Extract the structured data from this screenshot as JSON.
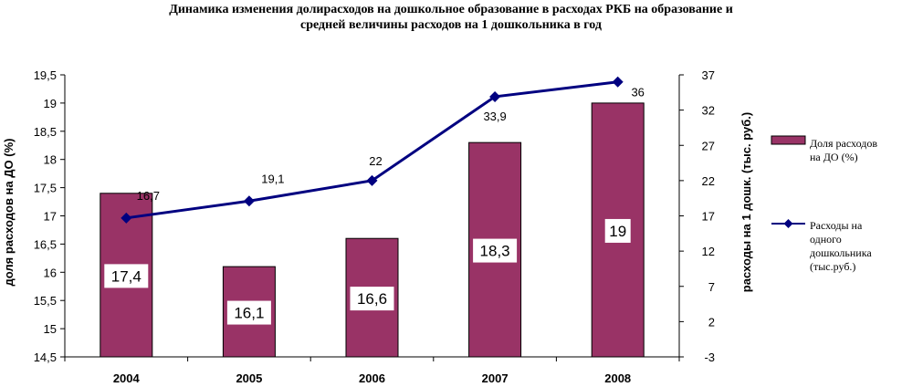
{
  "chart_data": {
    "type": "bar+line",
    "title_lines": [
      "Динамика изменения долирасходов на дошкольное образование в расходах РКБ на образование и",
      "средней величины расходов на 1 дошкольника в год"
    ],
    "categories": [
      "2004",
      "2005",
      "2006",
      "2007",
      "2008"
    ],
    "series": [
      {
        "name": "Доля расходов на ДО (%)",
        "legend_lines": [
          "Доля расходов",
          "на ДО (%)"
        ],
        "type": "bar",
        "axis": "left",
        "values": [
          17.4,
          16.1,
          16.6,
          18.3,
          19
        ],
        "labels": [
          "17,4",
          "16,1",
          "16,6",
          "18,3",
          "19"
        ],
        "color": "#993366"
      },
      {
        "name": "Расходы на одного дошкольника (тыс.руб.)",
        "legend_lines": [
          "Расходы на",
          "одного",
          "дошкольника",
          "(тыс.руб.)"
        ],
        "type": "line",
        "axis": "right",
        "values": [
          16.7,
          19.1,
          22,
          33.9,
          36
        ],
        "labels": [
          "16,7",
          "19,1",
          "22",
          "33,9",
          "36"
        ],
        "color": "#000080"
      }
    ],
    "y_left": {
      "label": "доля расходов на ДО (%)",
      "range": [
        14.5,
        19.5
      ],
      "ticks": [
        "14,5",
        "15",
        "15,5",
        "16",
        "16,5",
        "17",
        "17,5",
        "18",
        "18,5",
        "19",
        "19,5"
      ]
    },
    "y_right": {
      "label": "расходы на 1 дошк. (тыс. руб.)",
      "range": [
        -3,
        37
      ],
      "ticks": [
        "-3",
        "2",
        "7",
        "12",
        "17",
        "22",
        "27",
        "32",
        "37"
      ]
    },
    "grid": false,
    "legend_position": "right"
  }
}
